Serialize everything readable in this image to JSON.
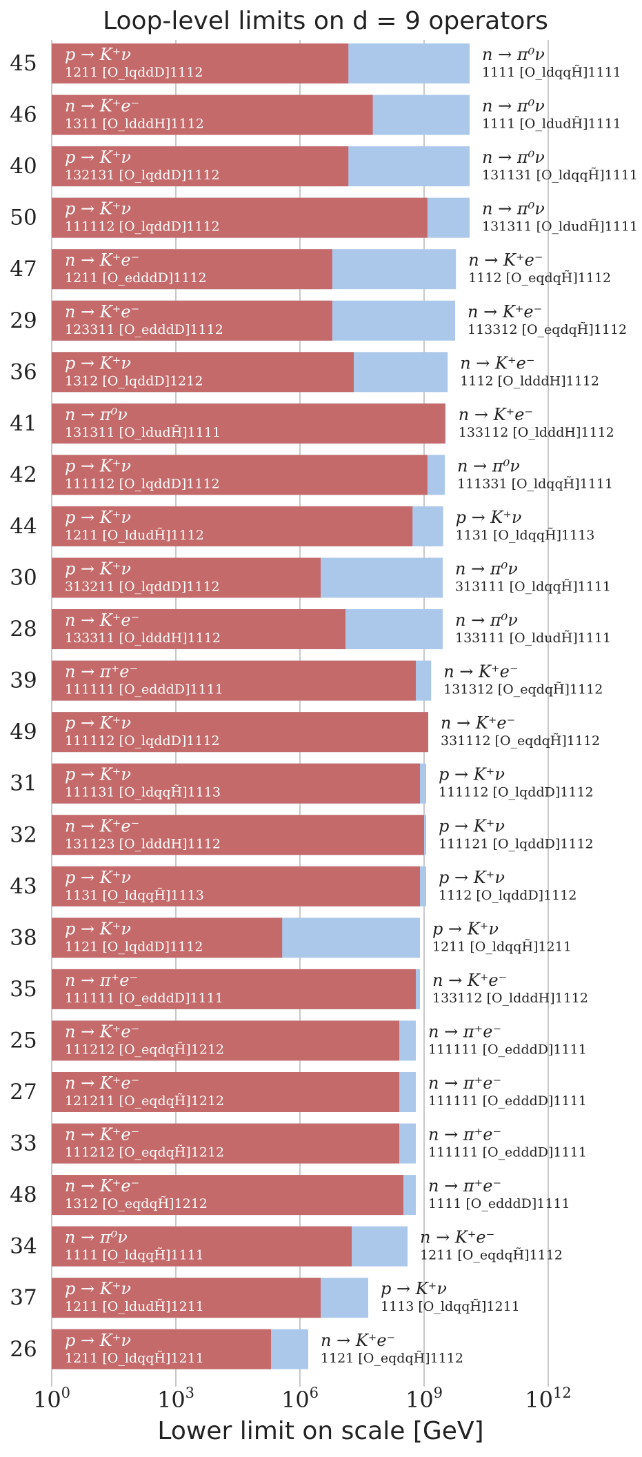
{
  "chart_data": {
    "type": "bar",
    "orientation": "horizontal",
    "title": "Loop-level limits on d = 9 operators",
    "xlabel": "Lower limit on scale [GeV]",
    "xscale": "log10",
    "xlim_exp": [
      0,
      12
    ],
    "xticks": [
      {
        "base": "10",
        "exp": "0"
      },
      {
        "base": "10",
        "exp": "3"
      },
      {
        "base": "10",
        "exp": "6"
      },
      {
        "base": "10",
        "exp": "9"
      },
      {
        "base": "10",
        "exp": "12"
      }
    ],
    "colors": {
      "red": "#c46a6a",
      "blue": "#abc8eb",
      "grid": "#c8c8c8",
      "text": "#222222"
    },
    "series": [
      {
        "name": "inner limit (red)",
        "key": "red_log10"
      },
      {
        "name": "outer limit (blue)",
        "key": "blue_log10"
      }
    ],
    "rows": [
      {
        "id": "45",
        "red_log10": 7.17,
        "blue_log10": 10.1,
        "in_proc": "p → K⁺ν",
        "in_code": "1211 [O_lqddD]1112",
        "out_proc": "n → π⁰ν",
        "out_code": "1111 [O_ldqqH̃]1111"
      },
      {
        "id": "46",
        "red_log10": 7.76,
        "blue_log10": 10.1,
        "in_proc": "n → K⁺e⁻",
        "in_code": "1311 [O_ldddH]1112",
        "out_proc": "n → π⁰ν",
        "out_code": "1111 [O_ldudH̃]1111"
      },
      {
        "id": "40",
        "red_log10": 7.17,
        "blue_log10": 10.1,
        "in_proc": "p → K⁺ν",
        "in_code": "132131 [O_lqddD]1112",
        "out_proc": "n → π⁰ν",
        "out_code": "131131 [O_ldqqH̃]1111"
      },
      {
        "id": "50",
        "red_log10": 9.08,
        "blue_log10": 10.1,
        "in_proc": "p → K⁺ν",
        "in_code": "111112 [O_lqddD]1112",
        "out_proc": "n → π⁰ν",
        "out_code": "131311 [O_ldudH̃]1111"
      },
      {
        "id": "47",
        "red_log10": 6.78,
        "blue_log10": 9.77,
        "in_proc": "n → K⁺e⁻",
        "in_code": "1211 [O_edddD]1112",
        "out_proc": "n → K⁺e⁻",
        "out_code": "1112 [O_eqdqH̃]1112"
      },
      {
        "id": "29",
        "red_log10": 6.78,
        "blue_log10": 9.75,
        "in_proc": "n → K⁺e⁻",
        "in_code": "123311 [O_edddD]1112",
        "out_proc": "n → K⁺e⁻",
        "out_code": "113312 [O_eqdqH̃]1112"
      },
      {
        "id": "36",
        "red_log10": 7.3,
        "blue_log10": 9.57,
        "in_proc": "p → K⁺ν",
        "in_code": "1312 [O_lqddD]1212",
        "out_proc": "n → K⁺e⁻",
        "out_code": "1112 [O_ldddH]1112"
      },
      {
        "id": "41",
        "red_log10": 9.5,
        "blue_log10": 9.53,
        "in_proc": "n → π⁰ν",
        "in_code": "131311 [O_ldudH̃]1111",
        "out_proc": "n → K⁺e⁻",
        "out_code": "133112 [O_ldddH]1112"
      },
      {
        "id": "42",
        "red_log10": 9.08,
        "blue_log10": 9.5,
        "in_proc": "p → K⁺ν",
        "in_code": "111112 [O_lqddD]1112",
        "out_proc": "n → π⁰ν",
        "out_code": "111331 [O_ldqqH̃]1111"
      },
      {
        "id": "44",
        "red_log10": 8.72,
        "blue_log10": 9.46,
        "in_proc": "p → K⁺ν",
        "in_code": "1211 [O_ldudH̃]1112",
        "out_proc": "p → K⁺ν",
        "out_code": "1131 [O_ldqqH̃]1113"
      },
      {
        "id": "30",
        "red_log10": 6.5,
        "blue_log10": 9.45,
        "in_proc": "p → K⁺ν",
        "in_code": "313211 [O_lqddD]1112",
        "out_proc": "n → π⁰ν",
        "out_code": "313111 [O_ldqqH̃]1111"
      },
      {
        "id": "28",
        "red_log10": 7.1,
        "blue_log10": 9.45,
        "in_proc": "n → K⁺e⁻",
        "in_code": "133311 [O_ldddH]1112",
        "out_proc": "n → π⁰ν",
        "out_code": "133111 [O_ldudH̃]1111"
      },
      {
        "id": "39",
        "red_log10": 8.8,
        "blue_log10": 9.17,
        "in_proc": "n → π⁺e⁻",
        "in_code": "111111 [O_edddD]1111",
        "out_proc": "n → K⁺e⁻",
        "out_code": "131312 [O_eqdqH̃]1112"
      },
      {
        "id": "49",
        "red_log10": 9.1,
        "blue_log10": 9.1,
        "in_proc": "p → K⁺ν",
        "in_code": "111112 [O_lqddD]1112",
        "out_proc": "n → K⁺e⁻",
        "out_code": "331112 [O_eqdqH̃]1112"
      },
      {
        "id": "31",
        "red_log10": 8.9,
        "blue_log10": 9.05,
        "in_proc": "p → K⁺ν",
        "in_code": "111131 [O_ldqqH̃]1113",
        "out_proc": "p → K⁺ν",
        "out_code": "111112 [O_lqddD]1112"
      },
      {
        "id": "32",
        "red_log10": 9.0,
        "blue_log10": 9.05,
        "in_proc": "n → K⁺e⁻",
        "in_code": "131123 [O_ldddH]1112",
        "out_proc": "p → K⁺ν",
        "out_code": "111121 [O_lqddD]1112"
      },
      {
        "id": "43",
        "red_log10": 8.9,
        "blue_log10": 9.05,
        "in_proc": "p → K⁺ν",
        "in_code": "1131 [O_ldqqH̃]1113",
        "out_proc": "p → K⁺ν",
        "out_code": "1112 [O_lqddD]1112"
      },
      {
        "id": "38",
        "red_log10": 5.57,
        "blue_log10": 8.9,
        "in_proc": "p → K⁺ν",
        "in_code": "1121 [O_lqddD]1112",
        "out_proc": "p → K⁺ν",
        "out_code": "1211 [O_ldqqH̃]1211"
      },
      {
        "id": "35",
        "red_log10": 8.8,
        "blue_log10": 8.9,
        "in_proc": "n → π⁺e⁻",
        "in_code": "111111 [O_edddD]1111",
        "out_proc": "n → K⁺e⁻",
        "out_code": "133112 [O_ldddH]1112"
      },
      {
        "id": "25",
        "red_log10": 8.4,
        "blue_log10": 8.8,
        "in_proc": "n → K⁺e⁻",
        "in_code": "111212 [O_eqdqH̃]1212",
        "out_proc": "n → π⁺e⁻",
        "out_code": "111111 [O_edddD]1111"
      },
      {
        "id": "27",
        "red_log10": 8.4,
        "blue_log10": 8.8,
        "in_proc": "n → K⁺e⁻",
        "in_code": "121211 [O_eqdqH̃]1212",
        "out_proc": "n → π⁺e⁻",
        "out_code": "111111 [O_edddD]1111"
      },
      {
        "id": "33",
        "red_log10": 8.4,
        "blue_log10": 8.8,
        "in_proc": "n → K⁺e⁻",
        "in_code": "111212 [O_eqdqH̃]1212",
        "out_proc": "n → π⁺e⁻",
        "out_code": "111111 [O_edddD]1111"
      },
      {
        "id": "48",
        "red_log10": 8.5,
        "blue_log10": 8.8,
        "in_proc": "n → K⁺e⁻",
        "in_code": "1312 [O_eqdqH̃]1212",
        "out_proc": "n → π⁺e⁻",
        "out_code": "1111 [O_edddD]1111"
      },
      {
        "id": "34",
        "red_log10": 7.25,
        "blue_log10": 8.6,
        "in_proc": "n → π⁰ν",
        "in_code": "1111 [O_ldqqH̃]1111",
        "out_proc": "n → K⁺e⁻",
        "out_code": "1211 [O_eqdqH̃]1112"
      },
      {
        "id": "37",
        "red_log10": 6.5,
        "blue_log10": 7.65,
        "in_proc": "p → K⁺ν",
        "in_code": "1211 [O_ldudH̃]1211",
        "out_proc": "p → K⁺ν",
        "out_code": "1113 [O_ldqqH̃]1211"
      },
      {
        "id": "26",
        "red_log10": 5.3,
        "blue_log10": 6.2,
        "in_proc": "p → K⁺ν",
        "in_code": "1211 [O_ldqqH̃]1211",
        "out_proc": "n → K⁺e⁻",
        "out_code": "1121 [O_eqdqH̃]1112"
      }
    ]
  }
}
